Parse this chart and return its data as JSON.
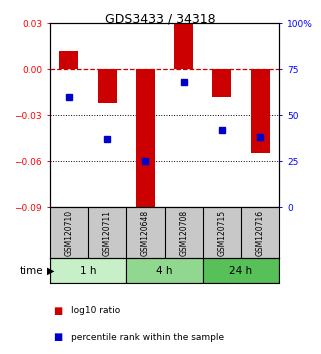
{
  "title": "GDS3433 / 34318",
  "samples": [
    "GSM120710",
    "GSM120711",
    "GSM120648",
    "GSM120708",
    "GSM120715",
    "GSM120716"
  ],
  "log10_ratio": [
    0.012,
    -0.022,
    -0.095,
    0.03,
    -0.018,
    -0.055
  ],
  "percentile_rank": [
    60,
    37,
    25,
    68,
    42,
    38
  ],
  "time_groups": [
    {
      "label": "1 h",
      "start": 0,
      "end": 2,
      "color": "#c8f0c8"
    },
    {
      "label": "4 h",
      "start": 2,
      "end": 4,
      "color": "#90d890"
    },
    {
      "label": "24 h",
      "start": 4,
      "end": 6,
      "color": "#58c058"
    }
  ],
  "bar_color": "#cc0000",
  "dot_color": "#0000cc",
  "zero_line_color": "#cc0000",
  "grid_color": "#000000",
  "ylim_left": [
    -0.09,
    0.03
  ],
  "ylim_right": [
    0,
    100
  ],
  "yticks_left": [
    -0.09,
    -0.06,
    -0.03,
    0,
    0.03
  ],
  "yticks_right": [
    0,
    25,
    50,
    75,
    100
  ],
  "ytick_labels_right": [
    "0",
    "25",
    "50",
    "75",
    "100%"
  ],
  "legend_red": "log10 ratio",
  "legend_blue": "percentile rank within the sample",
  "time_label": "time",
  "background_color": "#ffffff",
  "label_area_color": "#c8c8c8"
}
